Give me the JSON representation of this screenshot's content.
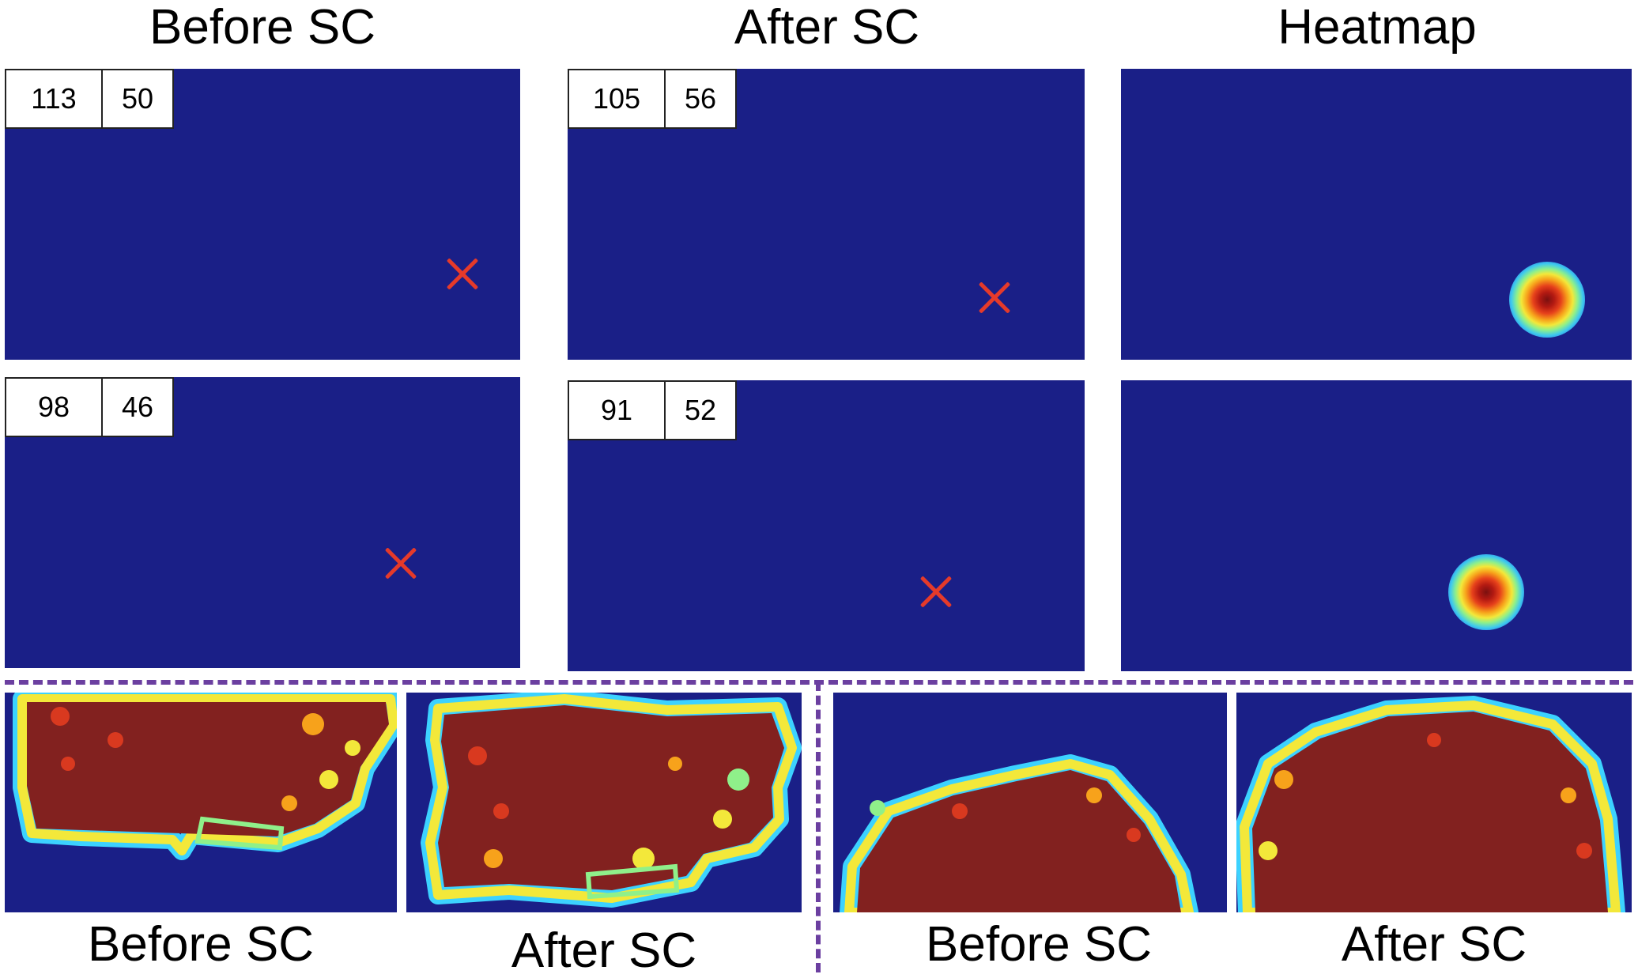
{
  "titles": {
    "before": "Before SC",
    "after": "After SC",
    "heatmap": "Heatmap"
  },
  "rows": [
    {
      "before": {
        "x": "113",
        "y": "50"
      },
      "after": {
        "x": "105",
        "y": "56"
      }
    },
    {
      "before": {
        "x": "98",
        "y": "46"
      },
      "after": {
        "x": "91",
        "y": "52"
      }
    }
  ],
  "captions": {
    "left_before": "Before SC",
    "left_after": "After SC",
    "right_before": "Before SC",
    "right_after": "After SC"
  },
  "colors": {
    "background": "#1a1f87",
    "marker": "#e53a2a",
    "divider": "#6b3fa0",
    "segment_fill": "#82211f"
  },
  "icons": {
    "marker": "cross-icon"
  }
}
